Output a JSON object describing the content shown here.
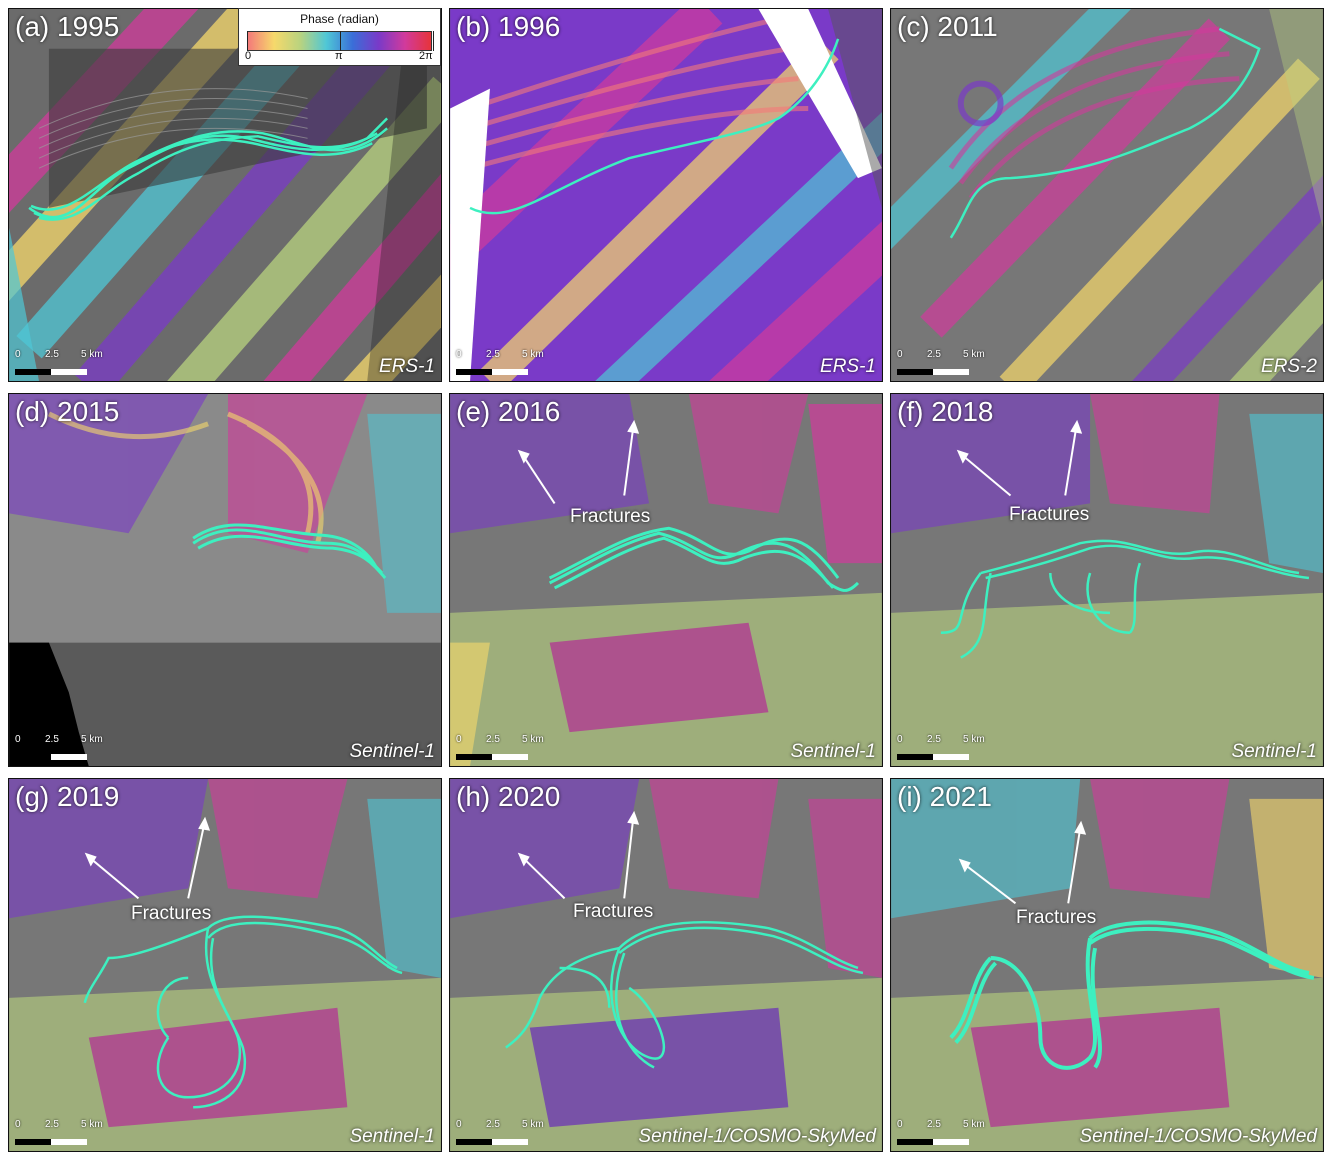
{
  "colorbar": {
    "title": "Phase (radian)",
    "ticks": [
      "0",
      "π",
      "2π"
    ],
    "colors": [
      "#f47a7a",
      "#f6d96b",
      "#b9d37f",
      "#4fc7d6",
      "#3a6ed8",
      "#7a3ac8",
      "#d13a9c",
      "#e7343a"
    ]
  },
  "scale": {
    "l0": "0",
    "l1": "2.5",
    "l2": "5 km"
  },
  "fracture_text": "Fractures",
  "panels": [
    {
      "label": "(a) 1995",
      "sensor": "ERS-1"
    },
    {
      "label": "(b) 1996",
      "sensor": "ERS-1"
    },
    {
      "label": "(c) 2011",
      "sensor": "ERS-2"
    },
    {
      "label": "(d) 2015",
      "sensor": "Sentinel-1"
    },
    {
      "label": "(e) 2016",
      "sensor": "Sentinel-1"
    },
    {
      "label": "(f) 2018",
      "sensor": "Sentinel-1"
    },
    {
      "label": "(g) 2019",
      "sensor": "Sentinel-1"
    },
    {
      "label": "(h) 2020",
      "sensor": "Sentinel-1/COSMO-SkyMed"
    },
    {
      "label": "(i) 2021",
      "sensor": "Sentinel-1/COSMO-SkyMed"
    }
  ]
}
